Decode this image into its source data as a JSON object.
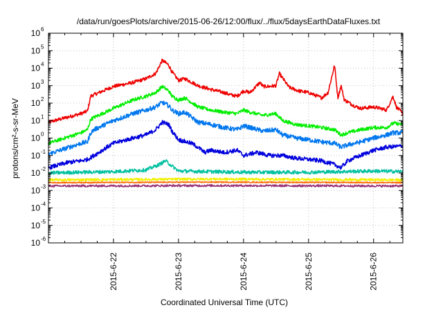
{
  "chart_data": {
    "type": "line",
    "title": "/data/run/goesPlots/archive/2015-06-26/12:00/flux/../flux/5daysEarthDataFluxes.txt",
    "xlabel": "Coordinated Universal Time (UTC)",
    "ylabel": "protons/cm²-s-sr-MeV",
    "y_scale": "log",
    "ylim": [
      1e-06,
      1000000.0
    ],
    "xlim": [
      0,
      5.45
    ],
    "x_ticks": [
      {
        "x": 1,
        "label": "2015-6-22"
      },
      {
        "x": 2,
        "label": "2015-6-23"
      },
      {
        "x": 3,
        "label": "2015-6-24"
      },
      {
        "x": 4,
        "label": "2015-6-25"
      },
      {
        "x": 5,
        "label": "2015-6-26"
      }
    ],
    "y_ticks": [
      {
        "exp": -6,
        "label": "10",
        "sup": "-6"
      },
      {
        "exp": -5,
        "label": "10",
        "sup": "-5"
      },
      {
        "exp": -4,
        "label": "10",
        "sup": "-4"
      },
      {
        "exp": -3,
        "label": "10",
        "sup": "-3"
      },
      {
        "exp": -2,
        "label": "10",
        "sup": "-2"
      },
      {
        "exp": -1,
        "label": "10",
        "sup": "-1"
      },
      {
        "exp": 0,
        "label": "10",
        "sup": "0"
      },
      {
        "exp": 1,
        "label": "10",
        "sup": "1"
      },
      {
        "exp": 2,
        "label": "10",
        "sup": "2"
      },
      {
        "exp": 3,
        "label": "10",
        "sup": "3"
      },
      {
        "exp": 4,
        "label": "10",
        "sup": "4"
      },
      {
        "exp": 5,
        "label": "10",
        "sup": "5"
      },
      {
        "exp": 6,
        "label": "10",
        "sup": "6"
      }
    ],
    "grid": true,
    "x_units": "days since 2015-6-21 00:00 UTC",
    "series": [
      {
        "color": "#ee0000",
        "noise": 0.1,
        "x": [
          0,
          0.5,
          0.6,
          0.65,
          0.7,
          1.0,
          1.3,
          1.5,
          1.65,
          1.75,
          1.85,
          1.9,
          2.0,
          2.1,
          2.3,
          2.5,
          2.7,
          2.8,
          2.9,
          3.0,
          3.1,
          3.25,
          3.3,
          3.4,
          3.5,
          3.55,
          3.7,
          3.85,
          4.0,
          4.2,
          4.3,
          4.4,
          4.45,
          4.5,
          4.55,
          4.6,
          4.7,
          4.8,
          5.0,
          5.1,
          5.2,
          5.3,
          5.35,
          5.45
        ],
        "y": [
          8,
          25,
          35,
          250,
          300,
          900,
          1500,
          2500,
          5000,
          28000,
          15000,
          6000,
          2000,
          2500,
          1000,
          600,
          400,
          300,
          250,
          500,
          400,
          1500,
          900,
          900,
          1000,
          5000,
          800,
          500,
          400,
          200,
          400,
          15000,
          200,
          1000,
          150,
          120,
          70,
          50,
          60,
          50,
          40,
          250,
          60,
          25
        ]
      },
      {
        "color": "#00ee00",
        "noise": 0.1,
        "x": [
          0,
          0.5,
          0.6,
          0.65,
          0.7,
          1.0,
          1.3,
          1.5,
          1.65,
          1.75,
          1.85,
          1.9,
          2.0,
          2.1,
          2.3,
          2.5,
          2.7,
          2.9,
          3.0,
          3.1,
          3.3,
          3.5,
          3.6,
          3.8,
          4.0,
          4.2,
          4.4,
          4.5,
          4.6,
          4.8,
          5.0,
          5.2,
          5.3,
          5.45
        ],
        "y": [
          0.5,
          2,
          3,
          12,
          15,
          50,
          150,
          250,
          400,
          900,
          500,
          250,
          150,
          200,
          60,
          40,
          30,
          25,
          40,
          30,
          20,
          25,
          10,
          6,
          5,
          4,
          3,
          1.5,
          2,
          3,
          4,
          4,
          7,
          6
        ]
      },
      {
        "color": "#0077ee",
        "noise": 0.13,
        "x": [
          0,
          0.5,
          0.6,
          0.65,
          0.7,
          1.0,
          1.3,
          1.5,
          1.65,
          1.75,
          1.85,
          1.9,
          2.0,
          2.1,
          2.3,
          2.5,
          2.7,
          2.9,
          3.0,
          3.1,
          3.3,
          3.5,
          3.6,
          3.8,
          4.0,
          4.2,
          4.4,
          4.5,
          4.6,
          4.8,
          5.0,
          5.2,
          5.3,
          5.45
        ],
        "y": [
          0.12,
          0.5,
          0.6,
          2,
          3,
          10,
          25,
          40,
          60,
          110,
          70,
          40,
          25,
          30,
          8,
          6,
          4,
          3,
          5,
          4,
          2.5,
          3,
          1.5,
          1,
          0.8,
          0.6,
          0.5,
          0.3,
          0.4,
          0.6,
          1,
          1.5,
          2,
          2
        ]
      },
      {
        "color": "#0000dd",
        "noise": 0.12,
        "x": [
          0,
          0.3,
          0.5,
          0.6,
          0.7,
          0.9,
          1.0,
          1.3,
          1.5,
          1.65,
          1.75,
          1.85,
          1.9,
          2.0,
          2.2,
          2.3,
          2.4,
          2.5,
          2.7,
          2.9,
          3.0,
          3.2,
          3.4,
          3.6,
          3.8,
          4.0,
          4.2,
          4.4,
          4.5,
          4.6,
          4.8,
          5.0,
          5.2,
          5.45
        ],
        "y": [
          0.02,
          0.04,
          0.05,
          0.06,
          0.1,
          0.3,
          0.5,
          1,
          1.5,
          3,
          8,
          6,
          2.5,
          0.8,
          0.5,
          0.3,
          0.15,
          0.2,
          0.15,
          0.2,
          0.1,
          0.15,
          0.1,
          0.1,
          0.07,
          0.06,
          0.05,
          0.03,
          0.02,
          0.05,
          0.1,
          0.2,
          0.3,
          0.35
        ]
      },
      {
        "color": "#00c0a0",
        "noise": 0.1,
        "x": [
          0,
          0.5,
          1.0,
          1.5,
          1.7,
          1.8,
          1.9,
          2.0,
          2.5,
          3.0,
          3.5,
          4.0,
          4.5,
          5.0,
          5.45
        ],
        "y": [
          0.01,
          0.011,
          0.012,
          0.015,
          0.03,
          0.05,
          0.025,
          0.013,
          0.012,
          0.011,
          0.011,
          0.011,
          0.012,
          0.013,
          0.012
        ]
      },
      {
        "color": "#f0f000",
        "noise": 0.07,
        "x": [
          0,
          2.5,
          5.45
        ],
        "y": [
          0.004,
          0.0045,
          0.004
        ]
      },
      {
        "color": "#ff6600",
        "noise": 0.03,
        "x": [
          0,
          2.5,
          5.45
        ],
        "y": [
          0.0028,
          0.003,
          0.0028
        ]
      },
      {
        "color": "#993377",
        "noise": 0.06,
        "x": [
          0,
          2.5,
          5.45
        ],
        "y": [
          0.0018,
          0.0019,
          0.0018
        ]
      }
    ]
  }
}
